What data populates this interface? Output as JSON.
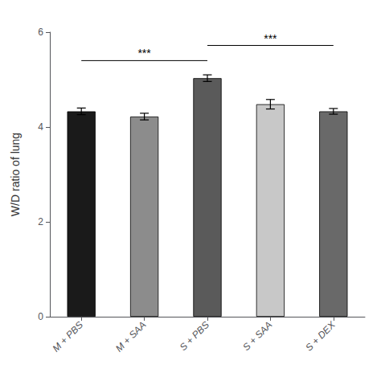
{
  "chart_data": {
    "type": "bar",
    "categories": [
      "M + PBS",
      "M + SAA",
      "S + PBS",
      "S + SAA",
      "S + DEX"
    ],
    "values": [
      4.33,
      4.22,
      5.03,
      4.48,
      4.33
    ],
    "errors": [
      0.07,
      0.07,
      0.07,
      0.1,
      0.06
    ],
    "colors": [
      "#1a1a1a",
      "#8c8c8c",
      "#5a5a5a",
      "#c8c8c8",
      "#696969"
    ],
    "ylabel": "W/D ratio of lung",
    "ylim": [
      0,
      6
    ],
    "yticks": [
      0,
      2,
      4,
      6
    ],
    "grid": false,
    "annotations": [
      {
        "x1": "M + PBS",
        "x2": "S + PBS",
        "y": 5.4,
        "text": "***"
      },
      {
        "x1": "S + PBS",
        "x2": "S + DEX",
        "y": 5.72,
        "text": "***"
      }
    ]
  }
}
